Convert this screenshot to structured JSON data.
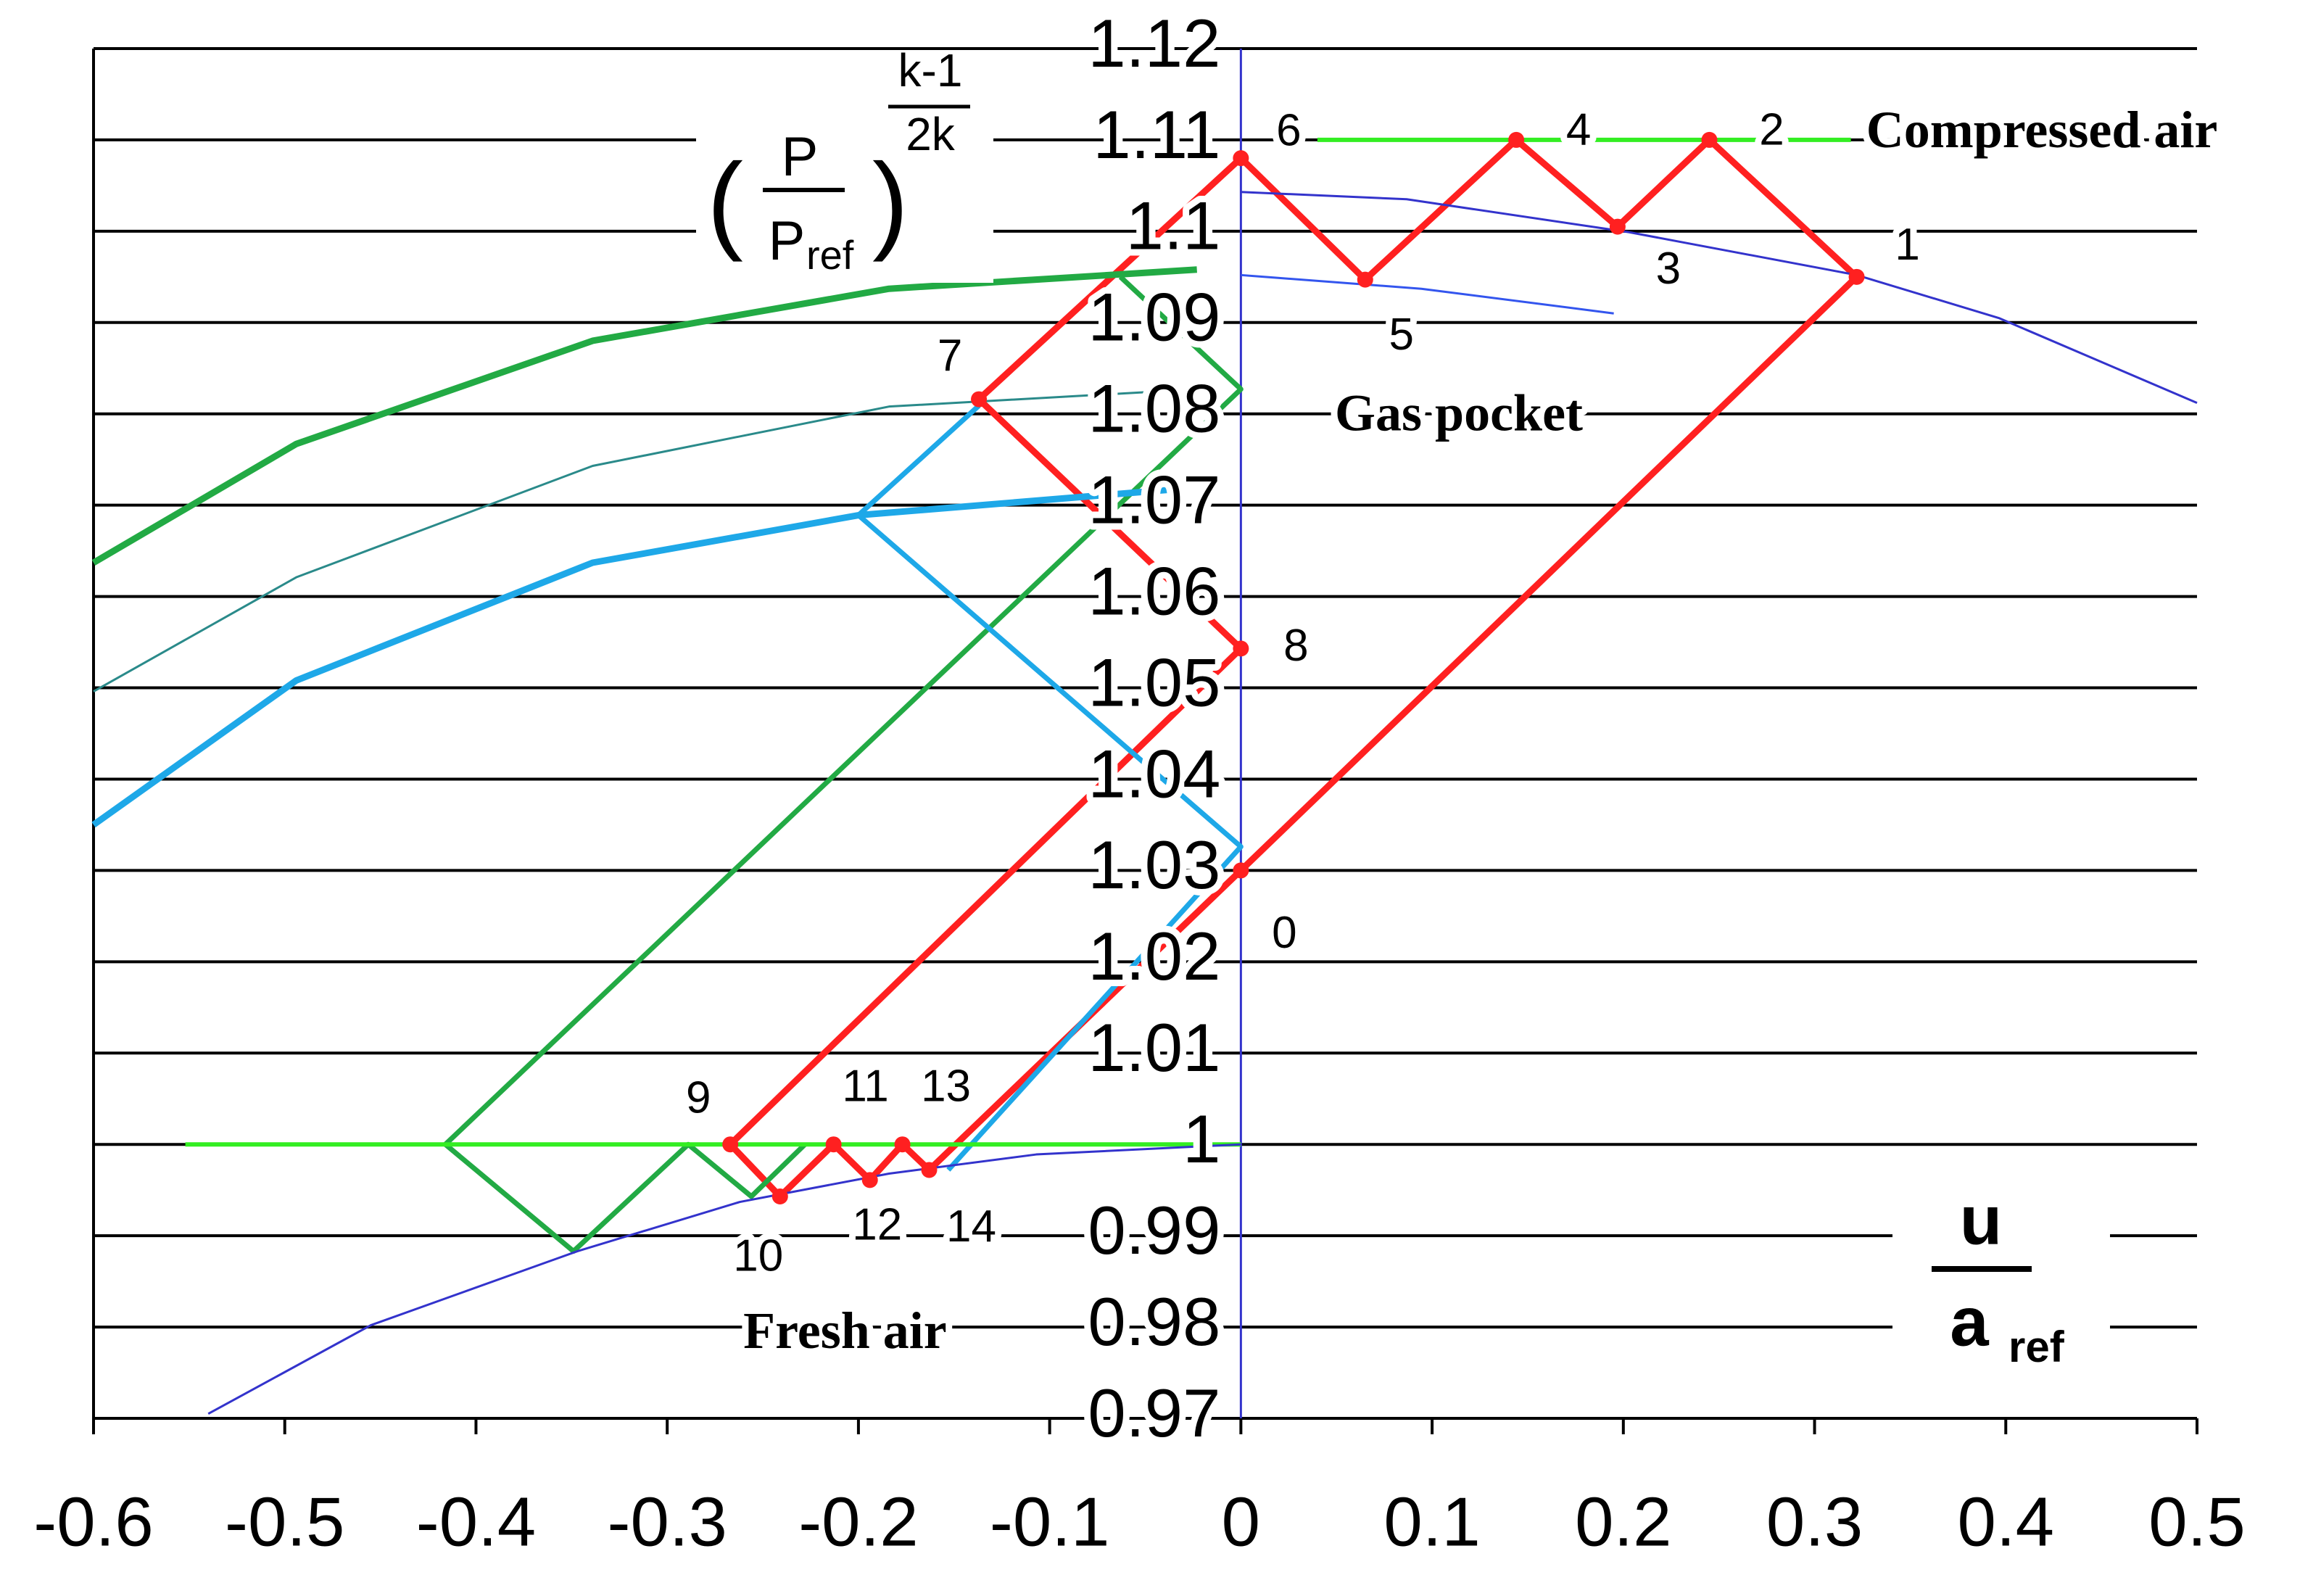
{
  "chart_data": {
    "type": "line",
    "y_label": {
      "numerator": "P",
      "denominator": "P",
      "denominator_sub": "ref",
      "exponent_numerator": "k-1",
      "exponent_denominator": "2k"
    },
    "x_label": {
      "numerator": "u",
      "denominator": "a",
      "denominator_sub": "ref"
    },
    "annotations": [
      "Compressed air",
      "Gas pocket",
      "Fresh air"
    ],
    "xlim": [
      -0.6,
      0.5
    ],
    "ylim": [
      0.97,
      1.12
    ],
    "xticks": [
      -0.6,
      -0.5,
      -0.4,
      -0.3,
      -0.2,
      -0.1,
      0,
      0.1,
      0.2,
      0.3,
      0.4,
      0.5
    ],
    "yticks": [
      0.97,
      0.98,
      0.99,
      1,
      1.01,
      1.02,
      1.03,
      1.04,
      1.05,
      1.06,
      1.07,
      1.08,
      1.09,
      1.1,
      1.11,
      1.12
    ],
    "grid": true,
    "series": [
      {
        "color": "#ff2020",
        "markers": true,
        "x": [
          0,
          0.322,
          0.245,
          0.197,
          0.144,
          0.065,
          0,
          -0.137,
          0,
          -0.267,
          -0.241,
          -0.213,
          -0.194,
          -0.177,
          -0.163,
          0
        ],
        "y": [
          1.03,
          1.095,
          1.11,
          1.1005,
          1.11,
          1.0947,
          1.108,
          1.0816,
          1.0543,
          1,
          0.9943,
          1,
          0.9961,
          1,
          0.9972,
          1.03
        ],
        "labels": [
          "0",
          "1",
          "2",
          "3",
          "4",
          "5",
          "6",
          "7",
          "8",
          "9",
          "10",
          "11",
          "12",
          "13",
          "14",
          null
        ]
      },
      {
        "color": "#22aa44",
        "x": [
          -0.063,
          0,
          -0.416,
          -0.349,
          -0.289,
          -0.256,
          -0.228
        ],
        "y": [
          1.095,
          1.0827,
          1,
          0.9883,
          1,
          0.9943,
          1
        ]
      },
      {
        "color": "#1ea8e8",
        "x": [
          -0.137,
          -0.2,
          0,
          -0.153
        ],
        "y": [
          1.0809,
          1.0689,
          1.0326,
          0.9972
        ]
      },
      {
        "color": "#33ee22",
        "x": [
          -0.552,
          0
        ],
        "y": [
          1,
          1
        ]
      },
      {
        "color": "#33ee22",
        "x": [
          0.04,
          0.319
        ],
        "y": [
          1.11,
          1.11
        ]
      },
      {
        "color": "#3333cc",
        "x": [
          -0.54,
          -0.455,
          -0.347,
          -0.262,
          -0.184,
          -0.107,
          0
        ],
        "y": [
          0.9705,
          0.9802,
          0.9883,
          0.9937,
          0.9968,
          0.9989,
          1
        ]
      },
      {
        "color": "#3333cc",
        "x": [
          0,
          0.0867,
          0.2028,
          0.322,
          0.3963,
          0.5
        ],
        "y": [
          1.1043,
          1.1035,
          1.0999,
          1.0952,
          1.0905,
          1.0812
        ]
      },
      {
        "color": "#3355ee",
        "x": [
          0,
          0.0944,
          0.195
        ],
        "y": [
          1.0952,
          1.0937,
          1.091
        ]
      },
      {
        "color": "#2a8a8a",
        "x": [
          -0.6,
          -0.494,
          -0.339,
          -0.184,
          -0.022
        ],
        "y": [
          1.0496,
          1.0621,
          1.0743,
          1.0808,
          1.0827
        ]
      },
      {
        "color": "#22aa44",
        "x": [
          -0.6,
          -0.494,
          -0.339,
          -0.184,
          -0.023
        ],
        "y": [
          1.0637,
          1.0767,
          1.088,
          1.0937,
          1.0958
        ]
      },
      {
        "color": "#1ea8e8",
        "x": [
          -0.6,
          -0.494,
          -0.339,
          -0.2,
          -0.031
        ],
        "y": [
          1.035,
          1.0508,
          1.0637,
          1.0689,
          1.0718
        ]
      }
    ]
  }
}
